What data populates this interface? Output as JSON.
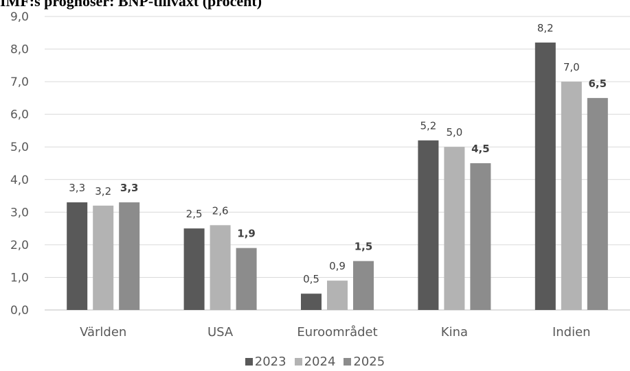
{
  "chart_data": {
    "type": "bar",
    "title": "IMF:s prognoser: BNP-tillväxt (procent)",
    "categories": [
      "Världen",
      "USA",
      "Euroområdet",
      "Kina",
      "Indien"
    ],
    "series": [
      {
        "name": "2023",
        "color": "#595959",
        "values": [
          3.3,
          2.5,
          0.5,
          5.2,
          8.2
        ],
        "labels": [
          "3,3",
          "2,5",
          "0,5",
          "5,2",
          "8,2"
        ],
        "bold_labels": false
      },
      {
        "name": "2024",
        "color": "#b3b3b3",
        "values": [
          3.2,
          2.6,
          0.9,
          5.0,
          7.0
        ],
        "labels": [
          "3,2",
          "2,6",
          "0,9",
          "5,0",
          "7,0"
        ],
        "bold_labels": false
      },
      {
        "name": "2025",
        "color": "#8c8c8c",
        "values": [
          3.3,
          1.9,
          1.5,
          4.5,
          6.5
        ],
        "labels": [
          "3,3",
          "1,9",
          "1,5",
          "4,5",
          "6,5"
        ],
        "bold_labels": true
      }
    ],
    "ylim": [
      0,
      9
    ],
    "yticks": [
      "0,0",
      "1,0",
      "2,0",
      "3,0",
      "4,0",
      "5,0",
      "6,0",
      "7,0",
      "8,0",
      "9,0"
    ],
    "grid": true,
    "legend_position": "bottom",
    "xlabel": "",
    "ylabel": ""
  }
}
